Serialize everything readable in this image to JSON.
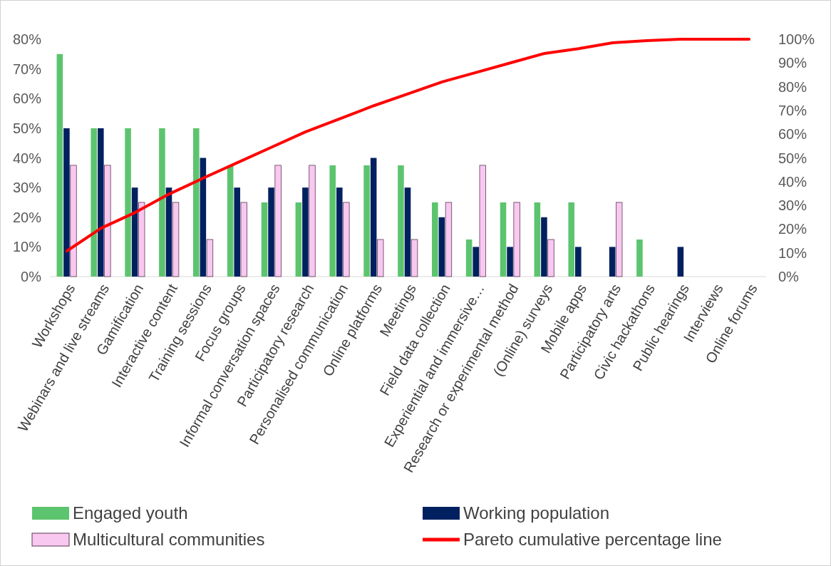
{
  "chart_data": {
    "type": "bar",
    "categories": [
      "Workshops",
      "Webinars and live streams",
      "Gamification",
      "Interactive content",
      "Training sessions",
      "Focus groups",
      "Informal conversation spaces",
      "Participatory research",
      "Personalised communication",
      "Online platforms",
      "Meetings",
      "Field data collection",
      "Experiential and immersive…",
      "Research or experimental method",
      "(Online) surveys",
      "Mobile apps",
      "Participatory arts",
      "Civic hackathons",
      "Public hearings",
      "Interviews",
      "Online forums"
    ],
    "series": [
      {
        "name": "Engaged youth",
        "color": "#5cc46e",
        "values": [
          75,
          50,
          50,
          50,
          50,
          37.5,
          25,
          25,
          37.5,
          37.5,
          37.5,
          25,
          12.5,
          25,
          25,
          25,
          0,
          12.5,
          0,
          0,
          0
        ]
      },
      {
        "name": "Working population",
        "color": "#002060",
        "values": [
          50,
          50,
          30,
          30,
          40,
          30,
          30,
          30,
          30,
          40,
          30,
          20,
          10,
          10,
          20,
          10,
          10,
          0,
          10,
          0,
          0
        ]
      },
      {
        "name": "Multicultural communities",
        "color": "#f8c8f0",
        "values": [
          37.5,
          37.5,
          25,
          25,
          12.5,
          25,
          37.5,
          37.5,
          25,
          12.5,
          12.5,
          25,
          37.5,
          25,
          12.5,
          0,
          25,
          0,
          0,
          0,
          0
        ]
      },
      {
        "name": "Pareto cumulative percentage line",
        "type": "line",
        "axis": "y2",
        "color": "#ff0000",
        "values": [
          10.8,
          20.4,
          27,
          34.8,
          41.5,
          48,
          54.5,
          61,
          66.5,
          72,
          77,
          82,
          86,
          90,
          94,
          96,
          98.5,
          99.4,
          100,
          100,
          100
        ]
      }
    ],
    "ylim": [
      0,
      80
    ],
    "yticks": [
      {
        "value": 0,
        "label": "0%"
      },
      {
        "value": 10,
        "label": "10%"
      },
      {
        "value": 20,
        "label": "20%"
      },
      {
        "value": 30,
        "label": "30%"
      },
      {
        "value": 40,
        "label": "40%"
      },
      {
        "value": 50,
        "label": "50%"
      },
      {
        "value": 60,
        "label": "60%"
      },
      {
        "value": 70,
        "label": "70%"
      },
      {
        "value": 80,
        "label": "80%"
      }
    ],
    "y2lim": [
      0,
      100
    ],
    "y2ticks": [
      {
        "value": 0,
        "label": "0%"
      },
      {
        "value": 10,
        "label": "10%"
      },
      {
        "value": 20,
        "label": "20%"
      },
      {
        "value": 30,
        "label": "30%"
      },
      {
        "value": 40,
        "label": "40%"
      },
      {
        "value": 50,
        "label": "50%"
      },
      {
        "value": 60,
        "label": "60%"
      },
      {
        "value": 70,
        "label": "70%"
      },
      {
        "value": 80,
        "label": "80%"
      },
      {
        "value": 90,
        "label": "90%"
      },
      {
        "value": 100,
        "label": "100%"
      }
    ],
    "legend": "bottom",
    "marker": "none",
    "line_style": "solid",
    "grid": false
  }
}
